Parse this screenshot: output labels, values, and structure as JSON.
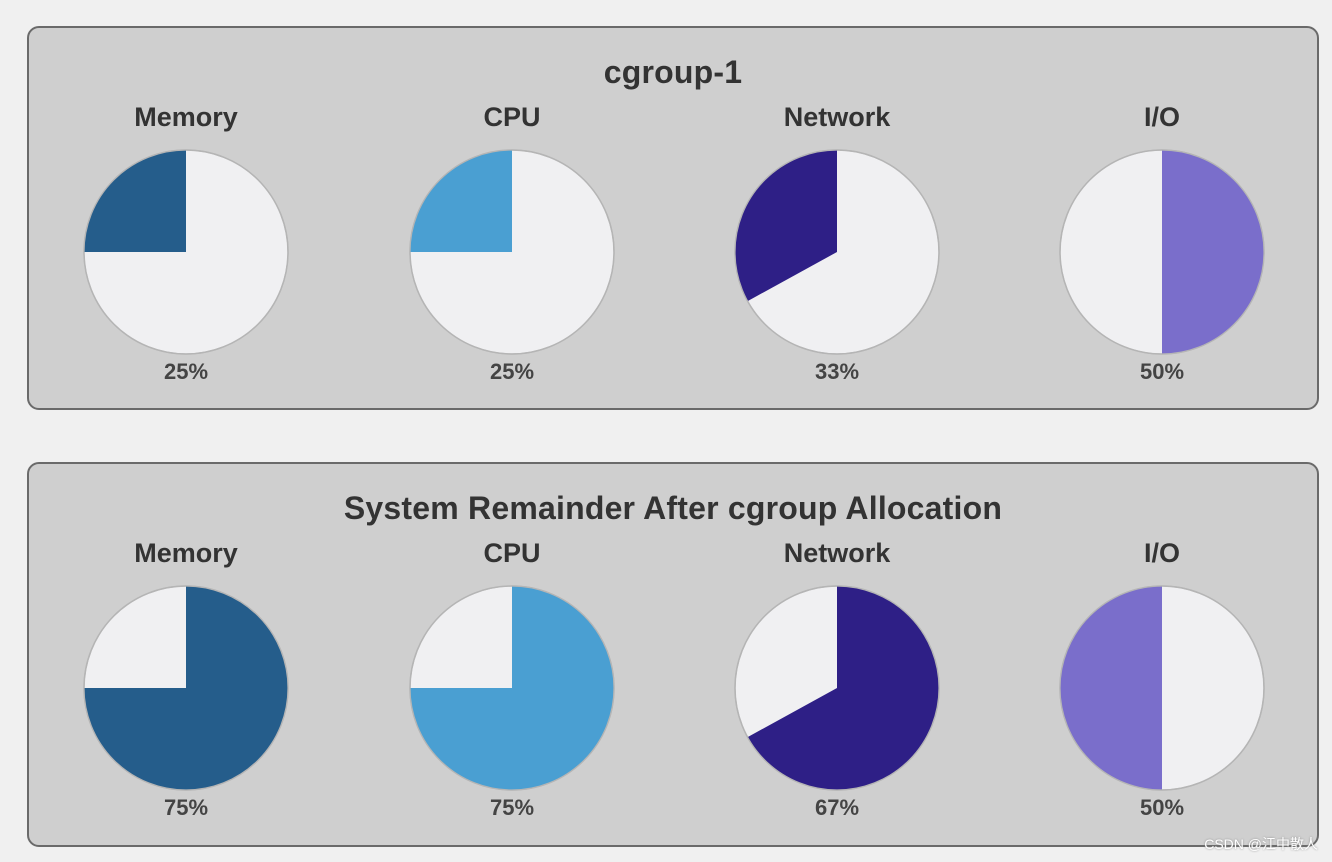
{
  "chart_data": [
    {
      "type": "pie",
      "title": "cgroup-1",
      "pies": [
        {
          "label": "Memory",
          "value": 25,
          "value_text": "25%",
          "color": "#255d8b"
        },
        {
          "label": "CPU",
          "value": 25,
          "value_text": "25%",
          "color": "#4a9fd2"
        },
        {
          "label": "Network",
          "value": 33,
          "value_text": "33%",
          "color": "#2e1f86"
        },
        {
          "label": "I/O",
          "value": 50,
          "value_text": "50%",
          "color": "#7a6ecb"
        }
      ]
    },
    {
      "type": "pie",
      "title": "System Remainder After cgroup Allocation",
      "pies": [
        {
          "label": "Memory",
          "value": 75,
          "value_text": "75%",
          "color": "#255d8b"
        },
        {
          "label": "CPU",
          "value": 75,
          "value_text": "75%",
          "color": "#4a9fd2"
        },
        {
          "label": "Network",
          "value": 67,
          "value_text": "67%",
          "color": "#2e1f86"
        },
        {
          "label": "I/O",
          "value": 50,
          "value_text": "50%",
          "color": "#7a6ecb"
        }
      ]
    }
  ],
  "colors": {
    "pie_background": "#f0f0f2",
    "pie_outline": "#b5b5b5"
  },
  "watermark": "CSDN @江中散人"
}
